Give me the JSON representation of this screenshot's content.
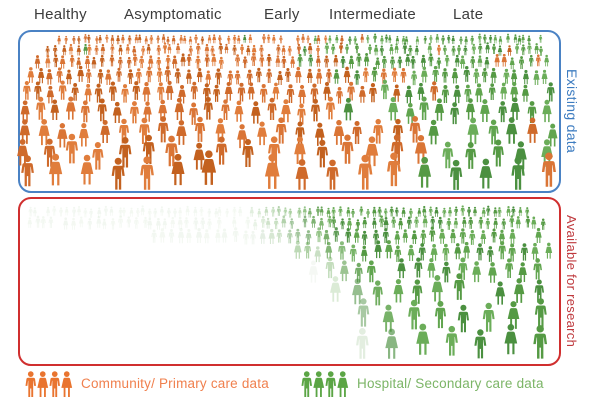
{
  "stage_labels": [
    "Healthy",
    "Asymptomatic",
    "Early",
    "Intermediate",
    "Late"
  ],
  "existing_box": {
    "label": "Existing data"
  },
  "research_box": {
    "label": "Available for research"
  },
  "legend": {
    "community": {
      "label": "Community/ Primary care data",
      "icon": "people-group-icon"
    },
    "hospital": {
      "label": "Hospital/ Secondary care data",
      "icon": "people-group-icon"
    }
  },
  "colors": {
    "community_icon_palette": [
      "#cf6a2b",
      "#da7536",
      "#c3611f",
      "#e07d3c"
    ],
    "hospital_icon_palette": [
      "#559a44",
      "#61a54f",
      "#4b9040",
      "#6bad59"
    ],
    "existing_border": "#4a82c4",
    "existing_label": "#3d7cc0",
    "research_border": "#d02f2f",
    "research_label": "#bf3a3e",
    "stage_label_text": "#3c3c3c",
    "legend_community_text": "#f0804e",
    "legend_hospital_text": "#7cb567",
    "legend_community_icon": "#e9742f",
    "legend_hospital_icon": "#5ba545"
  },
  "crowds": {
    "seed": 1337,
    "existing_rows": [
      [
        44,
        9,
        60,
        542,
        0.55
      ],
      [
        55,
        11,
        48,
        546,
        0.55
      ],
      [
        68,
        13,
        38,
        549,
        0.55
      ],
      [
        84,
        16,
        30,
        551,
        0.56
      ],
      [
        102,
        19,
        27,
        552,
        0.58
      ],
      [
        123,
        23,
        25,
        553,
        0.63
      ],
      [
        146,
        26,
        24,
        553,
        0.72
      ],
      [
        168,
        30,
        24,
        553,
        0.8
      ],
      [
        189,
        34,
        27,
        550,
        0.88
      ]
    ],
    "research_rows": [
      [
        217,
        10,
        30,
        546,
        0.55
      ],
      [
        229,
        12,
        30,
        547,
        0.55
      ],
      [
        244,
        15,
        30,
        548,
        0.56
      ],
      [
        261,
        18,
        30,
        549,
        0.58
      ],
      [
        281,
        22,
        30,
        550,
        0.63
      ],
      [
        304,
        26,
        30,
        551,
        0.75
      ],
      [
        330,
        30,
        30,
        551,
        0.82
      ],
      [
        357,
        33,
        30,
        549,
        0.88
      ]
    ]
  }
}
